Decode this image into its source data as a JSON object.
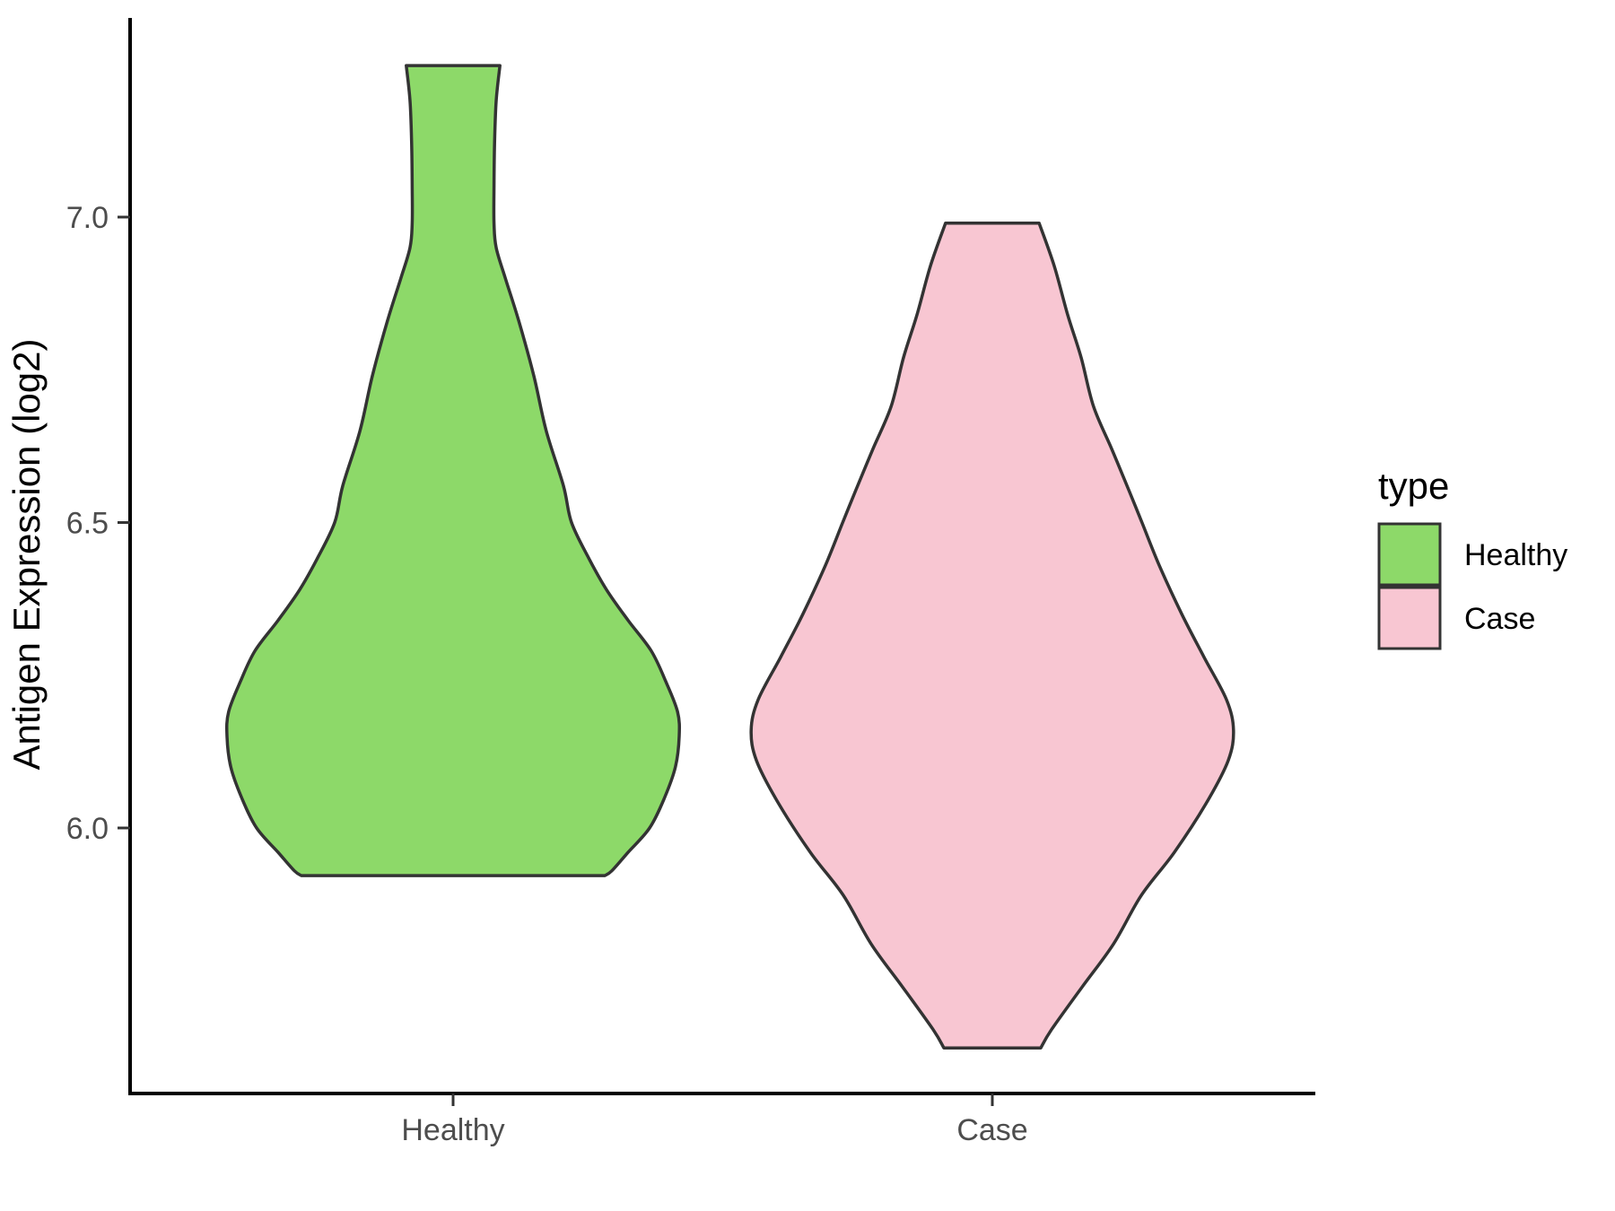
{
  "chart_data": {
    "type": "violin",
    "title": "",
    "xlabel": "",
    "ylabel": "Antigen Expression (log2)",
    "categories": [
      "Healthy",
      "Case"
    ],
    "y_ticks": [
      {
        "label": "7.0",
        "value": 7.0
      },
      {
        "label": "6.5",
        "value": 6.5
      },
      {
        "label": "6.0",
        "value": 6.0
      }
    ],
    "ylim": [
      5.56,
      7.33
    ],
    "grid": false,
    "legend": {
      "title": "type",
      "position": "right",
      "entries": [
        {
          "label": "Healthy",
          "color": "#8DD969"
        },
        {
          "label": "Case",
          "color": "#F8C6D2"
        }
      ]
    },
    "series": [
      {
        "name": "Healthy",
        "fill": "#8DD969",
        "min": 5.92,
        "max": 7.25,
        "peak": 6.16,
        "profile": [
          [
            7.248,
            0.087
          ],
          [
            7.19,
            0.08
          ],
          [
            7.12,
            0.077
          ],
          [
            7.05,
            0.076
          ],
          [
            6.99,
            0.076
          ],
          [
            6.95,
            0.08
          ],
          [
            6.9,
            0.097
          ],
          [
            6.83,
            0.122
          ],
          [
            6.74,
            0.15
          ],
          [
            6.65,
            0.173
          ],
          [
            6.56,
            0.205
          ],
          [
            6.5,
            0.22
          ],
          [
            6.44,
            0.253
          ],
          [
            6.39,
            0.285
          ],
          [
            6.34,
            0.325
          ],
          [
            6.29,
            0.368
          ],
          [
            6.24,
            0.395
          ],
          [
            6.19,
            0.417
          ],
          [
            6.15,
            0.42
          ],
          [
            6.1,
            0.413
          ],
          [
            6.05,
            0.393
          ],
          [
            6.0,
            0.365
          ],
          [
            5.96,
            0.325
          ],
          [
            5.93,
            0.295
          ],
          [
            5.922,
            0.282
          ]
        ]
      },
      {
        "name": "Case",
        "fill": "#F8C6D2",
        "min": 5.64,
        "max": 6.99,
        "peak": 6.16,
        "profile": [
          [
            6.99,
            0.087
          ],
          [
            6.92,
            0.115
          ],
          [
            6.84,
            0.14
          ],
          [
            6.77,
            0.165
          ],
          [
            6.69,
            0.188
          ],
          [
            6.62,
            0.222
          ],
          [
            6.55,
            0.255
          ],
          [
            6.5,
            0.278
          ],
          [
            6.43,
            0.31
          ],
          [
            6.35,
            0.352
          ],
          [
            6.28,
            0.393
          ],
          [
            6.21,
            0.435
          ],
          [
            6.16,
            0.448
          ],
          [
            6.11,
            0.438
          ],
          [
            6.04,
            0.397
          ],
          [
            5.96,
            0.338
          ],
          [
            5.89,
            0.277
          ],
          [
            5.81,
            0.225
          ],
          [
            5.74,
            0.167
          ],
          [
            5.67,
            0.11
          ],
          [
            5.64,
            0.09
          ]
        ]
      }
    ],
    "style": {
      "outline": "#333333",
      "axis_color": "#000000",
      "tick_color": "#333333",
      "tick_label_color": "#4d4d4d",
      "text_color": "#000000",
      "background": "#FFFFFF"
    }
  }
}
